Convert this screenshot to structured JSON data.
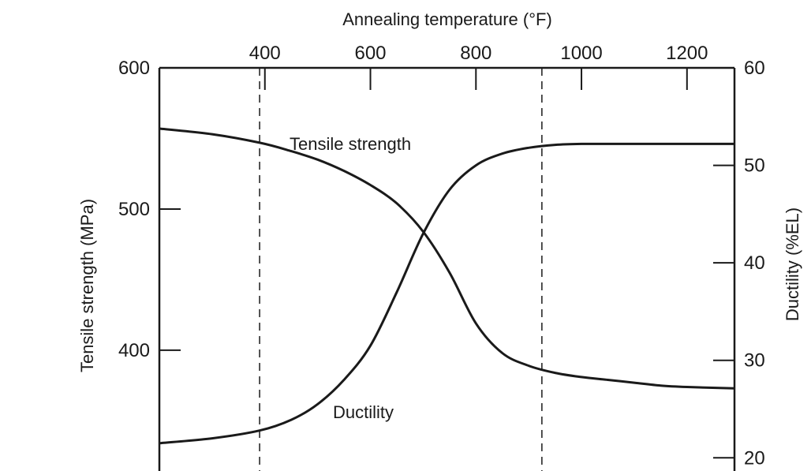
{
  "chart_data": {
    "type": "line",
    "title": "",
    "top_axis": {
      "label": "Annealing temperature (°F)",
      "ticks": [
        400,
        600,
        800,
        1000,
        1200
      ],
      "range": [
        200,
        1290
      ]
    },
    "left_axis": {
      "label": "Tensile strength (MPa)",
      "ticks": [
        400,
        500,
        600
      ],
      "range": [
        310,
        600
      ]
    },
    "right_axis": {
      "label": "Ductility (%EL)",
      "ticks": [
        20,
        30,
        40,
        50,
        60
      ],
      "range": [
        18,
        60
      ]
    },
    "vertical_dashed_lines": [
      390,
      925
    ],
    "series": [
      {
        "name": "Tensile strength",
        "axis": "left",
        "x": [
          200,
          300,
          390,
          450,
          500,
          550,
          600,
          650,
          700,
          750,
          800,
          850,
          900,
          950,
          1000,
          1050,
          1100,
          1150,
          1200,
          1290
        ],
        "values": [
          557,
          553,
          547,
          541,
          535,
          527,
          517,
          504,
          484,
          455,
          419,
          398,
          389,
          384,
          381,
          379,
          377,
          375,
          374,
          373
        ]
      },
      {
        "name": "Ductility",
        "axis": "right",
        "x": [
          200,
          300,
          390,
          450,
          500,
          550,
          600,
          650,
          700,
          750,
          800,
          850,
          900,
          950,
          1000,
          1050,
          1100,
          1150,
          1200,
          1290
        ],
        "values": [
          21.5,
          22.0,
          22.8,
          23.9,
          25.5,
          28.0,
          31.5,
          37.0,
          43.0,
          47.5,
          50.0,
          51.2,
          51.8,
          52.1,
          52.2,
          52.2,
          52.2,
          52.2,
          52.2,
          52.2
        ]
      }
    ],
    "annotations": [
      "Tensile strength",
      "Ductility"
    ],
    "grid": false,
    "legend": "none"
  }
}
